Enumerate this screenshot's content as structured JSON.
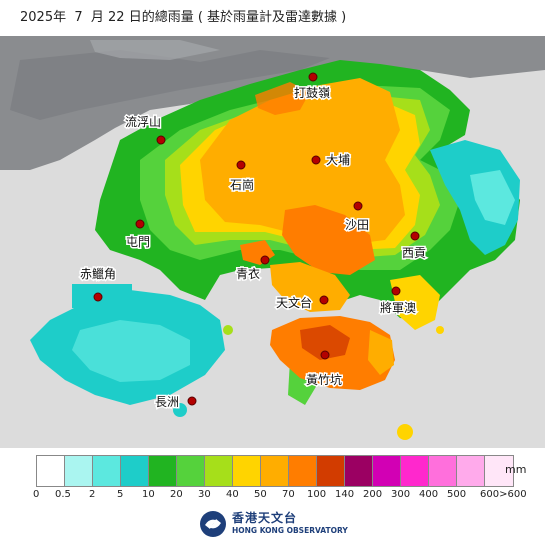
{
  "title": "2025年  7  月 22 日的總雨量 ( 基於雨量計及雷達數據 )",
  "map": {
    "stations": [
      {
        "id": "ta-kwu-ling",
        "label": "打鼓嶺"
      },
      {
        "id": "lau-fau-shan",
        "label": "流浮山"
      },
      {
        "id": "tai-po",
        "label": "大埔"
      },
      {
        "id": "shek-kong",
        "label": "石崗"
      },
      {
        "id": "tuen-mun",
        "label": "屯門"
      },
      {
        "id": "sha-tin",
        "label": "沙田"
      },
      {
        "id": "sai-kung",
        "label": "西貢"
      },
      {
        "id": "tsing-yi",
        "label": "青衣"
      },
      {
        "id": "chek-lap-kok",
        "label": "赤鱲角"
      },
      {
        "id": "tsim-sha-tsui",
        "label": "天文台"
      },
      {
        "id": "tseung-kwan-o",
        "label": "將軍澳"
      },
      {
        "id": "wong-chuk-hang",
        "label": "黃竹坑"
      },
      {
        "id": "cheung-chau",
        "label": "長洲"
      }
    ]
  },
  "legend": {
    "unit": "mm",
    "colors": [
      "#ffffff",
      "#aaf5f0",
      "#5ce8df",
      "#1ecdc9",
      "#21b421",
      "#55d23c",
      "#a6df1a",
      "#ffd400",
      "#ffad00",
      "#ff7d00",
      "#d23c00",
      "#9b0062",
      "#d200b4",
      "#ff28cd",
      "#ff6fdc",
      "#ffaaeb",
      "#ffe6f8"
    ],
    "labels": [
      "0",
      "0.5",
      "2",
      "5",
      "10",
      "20",
      "30",
      "40",
      "50",
      "70",
      "100",
      "140",
      "200",
      "300",
      "400",
      "500",
      "600>600"
    ]
  },
  "logo": {
    "chinese": "香港天文台",
    "english": "HONG KONG OBSERVATORY"
  }
}
